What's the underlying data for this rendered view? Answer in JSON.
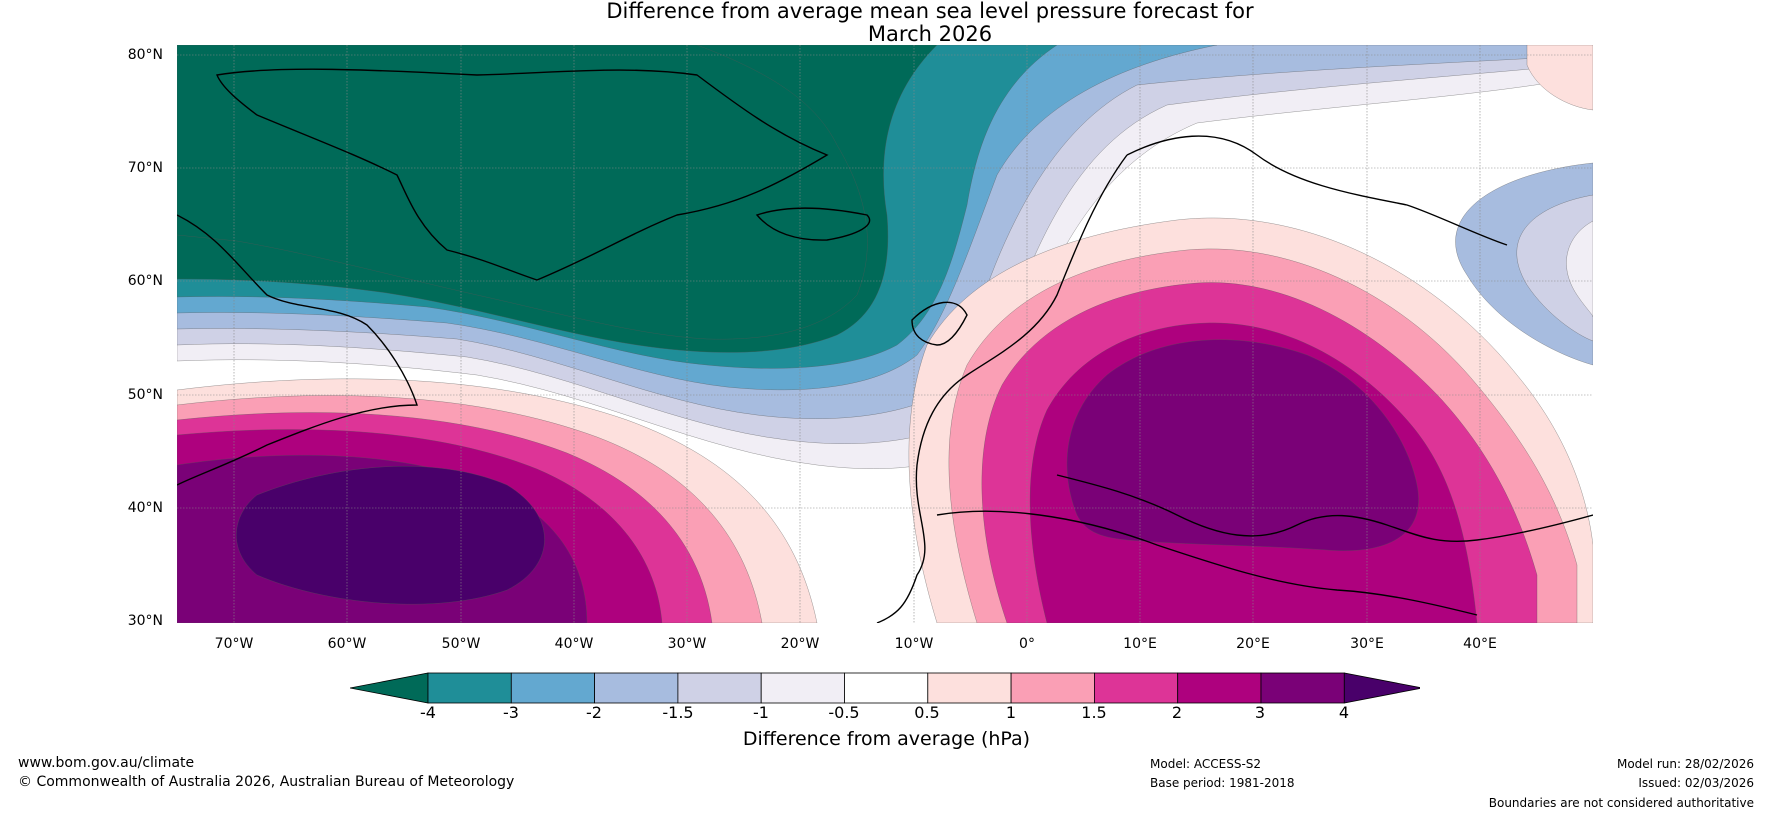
{
  "title": {
    "line1": "Difference from average mean sea level pressure forecast for",
    "line2": "March 2026"
  },
  "map": {
    "region": "North Atlantic and Europe",
    "lat_labels": [
      "80°N",
      "70°N",
      "60°N",
      "50°N",
      "40°N",
      "30°N"
    ],
    "lon_labels": [
      "70°W",
      "60°W",
      "50°W",
      "40°W",
      "30°W",
      "20°W",
      "10°W",
      "0°",
      "10°E",
      "20°E",
      "30°E",
      "40°E"
    ],
    "features": [
      "Greenland low anomaly",
      "Europe high anomaly",
      "western Atlantic high anomaly"
    ]
  },
  "colorbar": {
    "ticks": [
      "-4",
      "-3",
      "-2",
      "-1.5",
      "-1",
      "-0.5",
      "0.5",
      "1",
      "1.5",
      "2",
      "3",
      "4"
    ],
    "colors": [
      "#006a58",
      "#1f8e98",
      "#63a8d0",
      "#a7bcdf",
      "#cfd1e6",
      "#f1eef5",
      "#ffffff",
      "#fde0dd",
      "#fa9fb5",
      "#dd3497",
      "#ae017e",
      "#7a0177",
      "#49006a"
    ],
    "label": "Difference from average (hPa)"
  },
  "footer": {
    "website": "www.bom.gov.au/climate",
    "copyright": "© Commonwealth of Australia 2026, Australian Bureau of Meteorology",
    "model": "Model: ACCESS-S2",
    "base_period": "Base period: 1981-2018",
    "model_run": "Model run: 28/02/2026",
    "issued": "Issued: 02/03/2026",
    "disclaimer": "Boundaries are not considered authoritative"
  }
}
